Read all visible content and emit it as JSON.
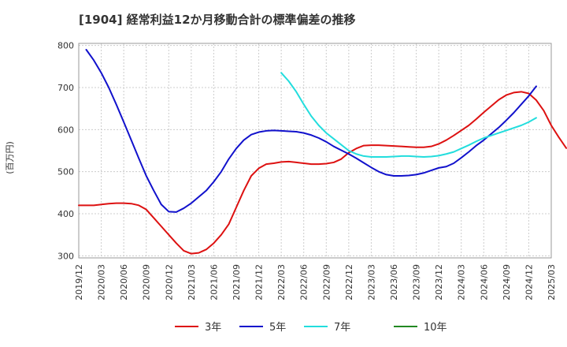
{
  "chart_data": {
    "type": "line",
    "title": "[1904]  経常利益12か月移動合計の標準偏差の推移",
    "ylabel": "(百万円)",
    "xlabel": "",
    "ylim": [
      295,
      805
    ],
    "yticks": [
      300,
      400,
      500,
      600,
      700,
      800
    ],
    "xticks": [
      "2019/12",
      "2020/03",
      "2020/06",
      "2020/09",
      "2020/12",
      "2021/03",
      "2021/06",
      "2021/09",
      "2021/12",
      "2022/03",
      "2022/06",
      "2022/09",
      "2022/12",
      "2023/03",
      "2023/06",
      "2023/09",
      "2023/12",
      "2024/03",
      "2024/06",
      "2024/09",
      "2024/12",
      "2025/03"
    ],
    "grid": true,
    "legend_position": "bottom",
    "series": [
      {
        "name": "3年",
        "color": "#dd1111",
        "start_index": 0,
        "values": [
          420,
          420,
          420,
          422,
          424,
          425,
          425,
          424,
          420,
          410,
          390,
          370,
          350,
          330,
          312,
          305,
          307,
          315,
          330,
          350,
          375,
          415,
          455,
          490,
          508,
          518,
          520,
          523,
          524,
          522,
          520,
          518,
          518,
          519,
          522,
          530,
          545,
          555,
          562,
          563,
          563,
          562,
          561,
          560,
          559,
          558,
          558,
          560,
          566,
          575,
          586,
          598,
          610,
          625,
          641,
          656,
          671,
          682,
          688,
          690,
          686,
          670,
          645,
          610,
          582,
          556
        ]
      },
      {
        "name": "5年",
        "color": "#1111cc",
        "start_index": 1,
        "values": [
          790,
          765,
          735,
          700,
          660,
          618,
          575,
          532,
          490,
          455,
          422,
          405,
          404,
          413,
          425,
          440,
          455,
          476,
          500,
          530,
          555,
          575,
          588,
          594,
          597,
          598,
          597,
          596,
          595,
          592,
          587,
          580,
          571,
          560,
          551,
          542,
          532,
          521,
          510,
          500,
          493,
          490,
          490,
          491,
          493,
          497,
          503,
          509,
          512,
          520,
          533,
          547,
          562,
          575,
          590,
          605,
          622,
          640,
          660,
          680,
          703
        ]
      },
      {
        "name": "7年",
        "color": "#22dddd",
        "start_index": 27,
        "values": [
          735,
          715,
          690,
          660,
          632,
          610,
          592,
          578,
          564,
          550,
          542,
          537,
          535,
          535,
          535,
          536,
          537,
          537,
          536,
          535,
          536,
          538,
          542,
          547,
          555,
          563,
          572,
          580,
          586,
          592,
          598,
          604,
          610,
          618,
          628
        ]
      },
      {
        "name": "10年",
        "color": "#228822",
        "start_index": 0,
        "values": []
      }
    ]
  }
}
